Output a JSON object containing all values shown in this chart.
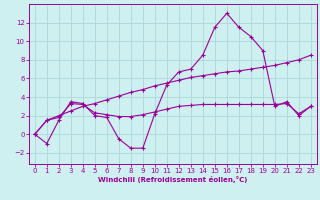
{
  "xlabel": "Windchill (Refroidissement éolien,°C)",
  "background_color": "#cff0f0",
  "grid_color": "#aad8d8",
  "line_color": "#990099",
  "xlim": [
    -0.5,
    23.5
  ],
  "ylim": [
    -3.2,
    14.0
  ],
  "xticks": [
    0,
    1,
    2,
    3,
    4,
    5,
    6,
    7,
    8,
    9,
    10,
    11,
    12,
    13,
    14,
    15,
    16,
    17,
    18,
    19,
    20,
    21,
    22,
    23
  ],
  "yticks": [
    -2,
    0,
    2,
    4,
    6,
    8,
    10,
    12
  ],
  "x": [
    0,
    1,
    2,
    3,
    4,
    5,
    6,
    7,
    8,
    9,
    10,
    11,
    12,
    13,
    14,
    15,
    16,
    17,
    18,
    19,
    20,
    21,
    22,
    23
  ],
  "series1": [
    0,
    -1,
    1.5,
    3.5,
    3.3,
    2.0,
    1.8,
    -0.5,
    -1.5,
    -1.5,
    2.2,
    5.3,
    6.7,
    7.0,
    8.5,
    11.5,
    13.0,
    11.5,
    10.5,
    9.0,
    3.0,
    3.5,
    2.0,
    3.0
  ],
  "series2": [
    0,
    1.5,
    1.8,
    3.3,
    3.2,
    2.3,
    2.1,
    1.9,
    1.9,
    2.1,
    2.4,
    2.7,
    3.0,
    3.1,
    3.2,
    3.2,
    3.2,
    3.2,
    3.2,
    3.2,
    3.2,
    3.3,
    2.2,
    3.0
  ],
  "series3": [
    0,
    1.5,
    2.0,
    2.5,
    3.0,
    3.3,
    3.7,
    4.1,
    4.5,
    4.8,
    5.2,
    5.5,
    5.8,
    6.1,
    6.3,
    6.5,
    6.7,
    6.8,
    7.0,
    7.2,
    7.4,
    7.7,
    8.0,
    8.5
  ]
}
